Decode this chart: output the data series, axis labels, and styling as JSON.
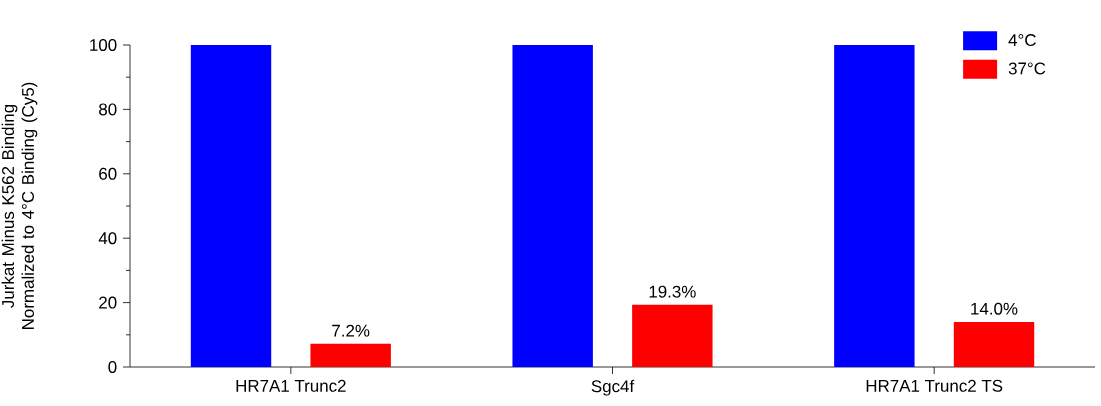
{
  "chart_data": {
    "type": "bar",
    "ylabel": "Jurkat Minus K562 Binding Normalized to 4°C Binding (Cy5)",
    "categories": [
      "HR7A1 Trunc2",
      "Sgc4f",
      "HR7A1 Trunc2 TS"
    ],
    "series": [
      {
        "name": "4°C",
        "color": "#0000ff",
        "values": [
          100,
          100,
          100
        ]
      },
      {
        "name": "37°C",
        "color": "#ff0000",
        "values": [
          7.2,
          19.3,
          14.0
        ],
        "value_labels": [
          "7.2%",
          "19.3%",
          "14.0%"
        ]
      }
    ],
    "ylim": [
      0,
      100
    ],
    "yticks": [
      0,
      {
        "value": 10,
        "label": null
      },
      20,
      {
        "value": 30,
        "label": null
      },
      40,
      {
        "value": 50,
        "label": null
      },
      60,
      {
        "value": 70,
        "label": null
      },
      80,
      {
        "value": 90,
        "label": null
      },
      100
    ],
    "grid": false,
    "legend": "top right"
  }
}
